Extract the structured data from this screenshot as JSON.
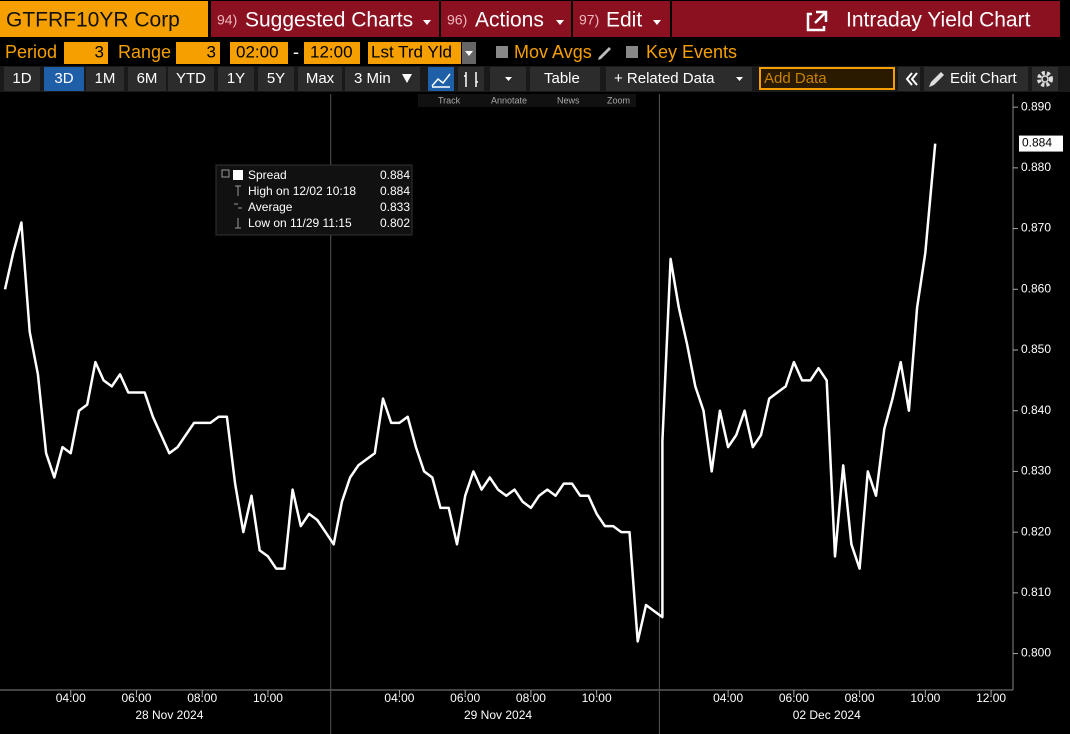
{
  "toolbar": {
    "security": "GTFRF10YR Corp",
    "menus": [
      {
        "code": "94)",
        "label": "Suggested Charts"
      },
      {
        "code": "96)",
        "label": "Actions"
      },
      {
        "code": "97)",
        "label": "Edit"
      }
    ],
    "page_title": "Intraday Yield Chart",
    "period_label": "Period",
    "period": "3",
    "range_label": "Range",
    "range": "3",
    "start_time": "02:00",
    "dash": "-",
    "end_time": "12:00",
    "field": "Lst Trd Yld",
    "mov_avgs": "Mov Avgs",
    "key_events": "Key Events",
    "spans": [
      "1D",
      "3D",
      "1M",
      "6M",
      "YTD",
      "1Y",
      "5Y",
      "Max"
    ],
    "interval": "3 Min",
    "table": "Table",
    "related": "+ Related Data",
    "add_data": "Add Data",
    "edit_chart": "Edit Chart",
    "tools": [
      "Track",
      "Annotate",
      "News",
      "Zoom"
    ]
  },
  "chart_data": {
    "type": "line",
    "xdates": [
      "28 Nov 2024",
      "29 Nov 2024",
      "02 Dec 2024"
    ],
    "xlim": [
      "28 Nov 2024 02:00",
      "02 Dec 2024 12:40"
    ],
    "x": [
      "28 Nov 2024 02:00",
      "28 Nov 2024 02:15",
      "28 Nov 2024 02:30",
      "28 Nov 2024 02:45",
      "28 Nov 2024 03:00",
      "28 Nov 2024 03:15",
      "28 Nov 2024 03:30",
      "28 Nov 2024 03:45",
      "28 Nov 2024 04:00",
      "28 Nov 2024 04:15",
      "28 Nov 2024 04:30",
      "28 Nov 2024 04:45",
      "28 Nov 2024 05:00",
      "28 Nov 2024 05:15",
      "28 Nov 2024 05:30",
      "28 Nov 2024 05:45",
      "28 Nov 2024 06:00",
      "28 Nov 2024 06:15",
      "28 Nov 2024 06:30",
      "28 Nov 2024 06:45",
      "28 Nov 2024 07:00",
      "28 Nov 2024 07:15",
      "28 Nov 2024 07:30",
      "28 Nov 2024 07:45",
      "28 Nov 2024 08:00",
      "28 Nov 2024 08:15",
      "28 Nov 2024 08:30",
      "28 Nov 2024 08:45",
      "28 Nov 2024 09:00",
      "28 Nov 2024 09:15",
      "28 Nov 2024 09:30",
      "28 Nov 2024 09:45",
      "28 Nov 2024 10:00",
      "28 Nov 2024 10:15",
      "28 Nov 2024 10:30",
      "28 Nov 2024 10:45",
      "28 Nov 2024 11:00",
      "28 Nov 2024 11:15",
      "28 Nov 2024 11:30",
      "28 Nov 2024 11:45",
      "28 Nov 2024 12:00",
      "29 Nov 2024 02:00",
      "29 Nov 2024 02:15",
      "29 Nov 2024 02:30",
      "29 Nov 2024 02:45",
      "29 Nov 2024 03:00",
      "29 Nov 2024 03:15",
      "29 Nov 2024 03:30",
      "29 Nov 2024 03:45",
      "29 Nov 2024 04:00",
      "29 Nov 2024 04:15",
      "29 Nov 2024 04:30",
      "29 Nov 2024 04:45",
      "29 Nov 2024 05:00",
      "29 Nov 2024 05:15",
      "29 Nov 2024 05:30",
      "29 Nov 2024 05:45",
      "29 Nov 2024 06:00",
      "29 Nov 2024 06:15",
      "29 Nov 2024 06:30",
      "29 Nov 2024 06:45",
      "29 Nov 2024 07:00",
      "29 Nov 2024 07:15",
      "29 Nov 2024 07:30",
      "29 Nov 2024 07:45",
      "29 Nov 2024 08:00",
      "29 Nov 2024 08:15",
      "29 Nov 2024 08:30",
      "29 Nov 2024 08:45",
      "29 Nov 2024 09:00",
      "29 Nov 2024 09:15",
      "29 Nov 2024 09:30",
      "29 Nov 2024 09:45",
      "29 Nov 2024 10:00",
      "29 Nov 2024 10:15",
      "29 Nov 2024 10:30",
      "29 Nov 2024 10:45",
      "29 Nov 2024 11:00",
      "29 Nov 2024 11:15",
      "29 Nov 2024 11:30",
      "29 Nov 2024 11:45",
      "29 Nov 2024 12:00",
      "02 Dec 2024 02:00",
      "02 Dec 2024 02:15",
      "02 Dec 2024 02:30",
      "02 Dec 2024 02:45",
      "02 Dec 2024 03:00",
      "02 Dec 2024 03:15",
      "02 Dec 2024 03:30",
      "02 Dec 2024 03:45",
      "02 Dec 2024 04:00",
      "02 Dec 2024 04:15",
      "02 Dec 2024 04:30",
      "02 Dec 2024 04:45",
      "02 Dec 2024 05:00",
      "02 Dec 2024 05:15",
      "02 Dec 2024 05:30",
      "02 Dec 2024 05:45",
      "02 Dec 2024 06:00",
      "02 Dec 2024 06:15",
      "02 Dec 2024 06:30",
      "02 Dec 2024 06:45",
      "02 Dec 2024 07:00",
      "02 Dec 2024 07:15",
      "02 Dec 2024 07:30",
      "02 Dec 2024 07:45",
      "02 Dec 2024 08:00",
      "02 Dec 2024 08:15",
      "02 Dec 2024 08:30",
      "02 Dec 2024 08:45",
      "02 Dec 2024 09:00",
      "02 Dec 2024 09:15",
      "02 Dec 2024 09:30",
      "02 Dec 2024 09:45",
      "02 Dec 2024 10:00",
      "02 Dec 2024 10:18"
    ],
    "series": [
      {
        "name": "Spread",
        "color": "#ffffff",
        "values": [
          0.86,
          0.866,
          0.871,
          0.853,
          0.846,
          0.833,
          0.829,
          0.834,
          0.833,
          0.84,
          0.841,
          0.848,
          0.845,
          0.844,
          0.846,
          0.843,
          0.843,
          0.843,
          0.839,
          0.836,
          0.833,
          0.834,
          0.836,
          0.838,
          0.838,
          0.838,
          0.839,
          0.839,
          0.828,
          0.82,
          0.826,
          0.817,
          0.816,
          0.814,
          0.814,
          0.827,
          0.821,
          0.823,
          0.822,
          0.82,
          0.818,
          0.818,
          0.825,
          0.829,
          0.831,
          0.832,
          0.833,
          0.842,
          0.838,
          0.838,
          0.839,
          0.834,
          0.83,
          0.829,
          0.824,
          0.824,
          0.818,
          0.826,
          0.83,
          0.827,
          0.829,
          0.827,
          0.826,
          0.827,
          0.825,
          0.824,
          0.826,
          0.827,
          0.826,
          0.828,
          0.828,
          0.826,
          0.826,
          0.823,
          0.821,
          0.821,
          0.82,
          0.82,
          0.802,
          0.808,
          0.807,
          0.806,
          0.835,
          0.865,
          0.857,
          0.851,
          0.844,
          0.84,
          0.83,
          0.84,
          0.834,
          0.836,
          0.84,
          0.834,
          0.836,
          0.842,
          0.843,
          0.844,
          0.848,
          0.845,
          0.845,
          0.847,
          0.845,
          0.816,
          0.831,
          0.818,
          0.814,
          0.83,
          0.826,
          0.837,
          0.842,
          0.848,
          0.84,
          0.857,
          0.866,
          0.884
        ]
      }
    ],
    "ylim": [
      0.794,
      0.892
    ],
    "yticks": [
      {
        "value": 0.8,
        "label": "0.800"
      },
      {
        "value": 0.81,
        "label": "0.810"
      },
      {
        "value": 0.82,
        "label": "0.820"
      },
      {
        "value": 0.83,
        "label": "0.830"
      },
      {
        "value": 0.84,
        "label": "0.840"
      },
      {
        "value": 0.85,
        "label": "0.850"
      },
      {
        "value": 0.86,
        "label": "0.860"
      },
      {
        "value": 0.87,
        "label": "0.870"
      },
      {
        "value": 0.88,
        "label": "0.880"
      },
      {
        "value": 0.89,
        "label": "0.890"
      }
    ],
    "xticks": [
      {
        "value": "28 Nov 2024 04:00",
        "label": "04:00"
      },
      {
        "value": "28 Nov 2024 06:00",
        "label": "06:00"
      },
      {
        "value": "28 Nov 2024 08:00",
        "label": "08:00"
      },
      {
        "value": "28 Nov 2024 10:00",
        "label": "10:00"
      },
      {
        "value": "29 Nov 2024 04:00",
        "label": "04:00"
      },
      {
        "value": "29 Nov 2024 06:00",
        "label": "06:00"
      },
      {
        "value": "29 Nov 2024 08:00",
        "label": "08:00"
      },
      {
        "value": "29 Nov 2024 10:00",
        "label": "10:00"
      },
      {
        "value": "02 Dec 2024 04:00",
        "label": "04:00"
      },
      {
        "value": "02 Dec 2024 06:00",
        "label": "06:00"
      },
      {
        "value": "02 Dec 2024 08:00",
        "label": "08:00"
      },
      {
        "value": "02 Dec 2024 10:00",
        "label": "10:00"
      },
      {
        "value": "02 Dec 2024 12:00",
        "label": "12:00"
      }
    ],
    "tooltip": [
      {
        "label": "High on 12/02 10:18",
        "value": 0.884
      },
      {
        "label": "Average",
        "value": 0.833
      },
      {
        "label": "Low on 11/29 11:15",
        "value": 0.802
      }
    ],
    "grid": false
  }
}
